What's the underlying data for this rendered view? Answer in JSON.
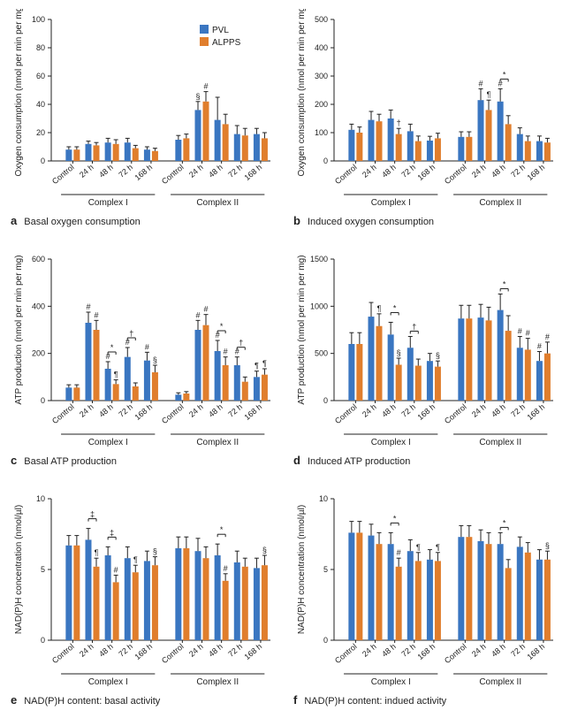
{
  "colors": {
    "pvl": "#3a76c1",
    "alpps": "#e07e2d",
    "axis": "#222222",
    "bg": "#ffffff"
  },
  "legend": {
    "items": [
      "PVL",
      "ALPPS"
    ]
  },
  "categories": [
    "Control",
    "24 h",
    "48 h",
    "72 h",
    "168 h"
  ],
  "groups": [
    "Complex I",
    "Complex II"
  ],
  "panels": {
    "a": {
      "letter": "a",
      "title": "Basal oxygen consumption",
      "ylabel": "Oxygen consumption (nmol per min per mg)",
      "ylim": [
        0,
        100
      ],
      "ytick_step": 20,
      "show_legend": true,
      "complex1": {
        "pvl": {
          "v": [
            8,
            12,
            13,
            13,
            8
          ],
          "e": [
            2,
            2,
            3,
            3,
            2
          ]
        },
        "alpps": {
          "v": [
            8,
            11,
            12,
            9,
            7
          ],
          "e": [
            2,
            2,
            3,
            2,
            2
          ]
        },
        "sig": {
          "0": {},
          "1": {},
          "2": {},
          "3": {},
          "4": {}
        }
      },
      "complex2": {
        "pvl": {
          "v": [
            15,
            36,
            29,
            19,
            19
          ],
          "e": [
            3,
            6,
            16,
            6,
            4
          ]
        },
        "alpps": {
          "v": [
            16,
            42,
            26,
            18,
            16
          ],
          "e": [
            3,
            7,
            7,
            5,
            4
          ]
        },
        "sig": {
          "1": {
            "pvl": "§",
            "alpps": "#"
          }
        }
      }
    },
    "b": {
      "letter": "b",
      "title": "Induced oxygen consumption",
      "ylabel": "Oxygen consumption (nmol per min per mg)",
      "ylim": [
        0,
        500
      ],
      "ytick_step": 100,
      "show_legend": false,
      "complex1": {
        "pvl": {
          "v": [
            110,
            145,
            150,
            105,
            72
          ],
          "e": [
            20,
            30,
            30,
            25,
            15
          ]
        },
        "alpps": {
          "v": [
            100,
            140,
            95,
            70,
            80
          ],
          "e": [
            20,
            25,
            20,
            18,
            18
          ]
        },
        "sig": {
          "2": {
            "alpps": "†"
          }
        }
      },
      "complex2": {
        "pvl": {
          "v": [
            85,
            215,
            210,
            95,
            70
          ],
          "e": [
            18,
            40,
            45,
            22,
            18
          ]
        },
        "alpps": {
          "v": [
            85,
            180,
            130,
            70,
            65
          ],
          "e": [
            18,
            35,
            30,
            18,
            15
          ]
        },
        "sig": {
          "1": {
            "pvl": "#",
            "alpps": "¶"
          },
          "2": {
            "pvl": "#",
            "pair": "*"
          }
        }
      }
    },
    "c": {
      "letter": "c",
      "title": "Basal ATP production",
      "ylabel": "ATP production (nmol per min per mg)",
      "ylim": [
        0,
        600
      ],
      "ytick_step": 200,
      "show_legend": false,
      "complex1": {
        "pvl": {
          "v": [
            55,
            330,
            135,
            185,
            170
          ],
          "e": [
            12,
            45,
            30,
            40,
            35
          ]
        },
        "alpps": {
          "v": [
            55,
            300,
            70,
            60,
            120
          ],
          "e": [
            12,
            40,
            18,
            15,
            30
          ]
        },
        "sig": {
          "1": {
            "pvl": "#",
            "alpps": "#"
          },
          "2": {
            "pvl": "#",
            "alpps": "¶",
            "pair": "*"
          },
          "3": {
            "pvl": "#",
            "pair": "†"
          },
          "4": {
            "pvl": "#",
            "alpps": "§"
          }
        }
      },
      "complex2": {
        "pvl": {
          "v": [
            25,
            300,
            210,
            150,
            100
          ],
          "e": [
            8,
            40,
            45,
            35,
            25
          ]
        },
        "alpps": {
          "v": [
            30,
            320,
            150,
            80,
            110
          ],
          "e": [
            8,
            45,
            35,
            20,
            25
          ]
        },
        "sig": {
          "1": {
            "pvl": "#",
            "alpps": "#"
          },
          "2": {
            "pvl": "#",
            "alpps": "#",
            "pair": "*"
          },
          "3": {
            "pvl": "#",
            "pair": "†"
          },
          "4": {
            "pvl": "¶",
            "alpps": "¶"
          }
        }
      }
    },
    "d": {
      "letter": "d",
      "title": "Induced ATP production",
      "ylabel": "ATP production (nmol per min per mg)",
      "ylim": [
        0,
        1500
      ],
      "ytick_step": 500,
      "show_legend": false,
      "complex1": {
        "pvl": {
          "v": [
            600,
            890,
            700,
            560,
            420
          ],
          "e": [
            120,
            150,
            130,
            120,
            80
          ]
        },
        "alpps": {
          "v": [
            600,
            790,
            380,
            370,
            360
          ],
          "e": [
            120,
            130,
            70,
            70,
            60
          ]
        },
        "sig": {
          "1": {
            "alpps": "¶"
          },
          "2": {
            "alpps": "§",
            "pair": "*"
          },
          "3": {
            "pair": "†"
          },
          "4": {
            "alpps": "§"
          }
        }
      },
      "complex2": {
        "pvl": {
          "v": [
            870,
            880,
            960,
            560,
            420
          ],
          "e": [
            140,
            140,
            170,
            120,
            100
          ]
        },
        "alpps": {
          "v": [
            870,
            850,
            740,
            540,
            500
          ],
          "e": [
            140,
            140,
            160,
            120,
            120
          ]
        },
        "sig": {
          "2": {
            "pair": "*"
          },
          "3": {
            "pvl": "#",
            "alpps": "#"
          },
          "4": {
            "pvl": "#",
            "alpps": "#"
          }
        }
      }
    },
    "e": {
      "letter": "e",
      "title": "NAD(P)H content: basal activity",
      "ylabel": "NAD(P)H concentration (nmol/µl)",
      "ylim": [
        0,
        10
      ],
      "ytick_step": 5,
      "show_legend": false,
      "complex1": {
        "pvl": {
          "v": [
            6.7,
            7.1,
            6.0,
            5.8,
            5.6
          ],
          "e": [
            0.7,
            0.8,
            0.6,
            0.8,
            0.7
          ]
        },
        "alpps": {
          "v": [
            6.7,
            5.2,
            4.1,
            4.8,
            5.3
          ],
          "e": [
            0.7,
            0.6,
            0.5,
            0.5,
            0.6
          ]
        },
        "sig": {
          "1": {
            "alpps": "¶",
            "pair": "‡"
          },
          "2": {
            "alpps": "#",
            "pair": "‡"
          },
          "3": {
            "alpps": "¶"
          },
          "4": {
            "alpps": "§"
          }
        }
      },
      "complex2": {
        "pvl": {
          "v": [
            6.5,
            6.3,
            6.0,
            5.5,
            5.1
          ],
          "e": [
            0.8,
            0.9,
            0.8,
            0.8,
            0.7
          ]
        },
        "alpps": {
          "v": [
            6.5,
            5.8,
            4.2,
            5.2,
            5.3
          ],
          "e": [
            0.8,
            0.8,
            0.5,
            0.6,
            0.7
          ]
        },
        "sig": {
          "2": {
            "alpps": "#",
            "pair": "*"
          },
          "4": {
            "alpps": "§"
          }
        }
      }
    },
    "f": {
      "letter": "f",
      "title": "NAD(P)H content: indued activity",
      "ylabel": "NAD(P)H concentration (nmol/µl)",
      "ylim": [
        0,
        10
      ],
      "ytick_step": 5,
      "show_legend": false,
      "complex1": {
        "pvl": {
          "v": [
            7.6,
            7.4,
            6.8,
            6.3,
            5.7
          ],
          "e": [
            0.8,
            0.8,
            0.8,
            0.8,
            0.7
          ]
        },
        "alpps": {
          "v": [
            7.6,
            6.8,
            5.2,
            5.6,
            5.6
          ],
          "e": [
            0.8,
            0.8,
            0.6,
            0.6,
            0.6
          ]
        },
        "sig": {
          "2": {
            "alpps": "#",
            "pair": "*"
          },
          "3": {
            "alpps": "¶"
          },
          "4": {
            "alpps": "¶"
          }
        }
      },
      "complex2": {
        "pvl": {
          "v": [
            7.3,
            7.0,
            6.8,
            6.6,
            5.7
          ],
          "e": [
            0.8,
            0.8,
            0.8,
            0.7,
            0.7
          ]
        },
        "alpps": {
          "v": [
            7.3,
            6.8,
            5.1,
            6.2,
            5.7
          ],
          "e": [
            0.8,
            0.8,
            0.6,
            0.7,
            0.6
          ]
        },
        "sig": {
          "2": {
            "pair": "*"
          },
          "4": {
            "alpps": "§"
          }
        }
      }
    }
  }
}
